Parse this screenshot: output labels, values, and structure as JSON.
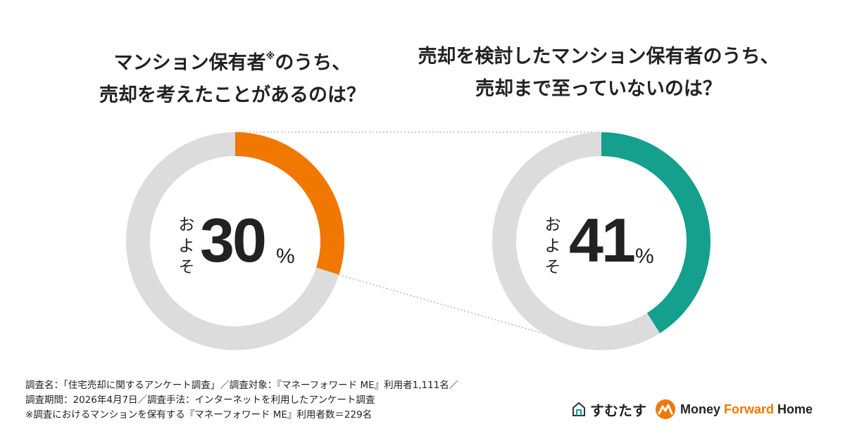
{
  "titles": {
    "left_line1": "マンション保有者",
    "left_mark": "※",
    "left_line1_tail": "のうち、",
    "left_line2": "売却を考えたことがあるのは？",
    "right_line1": "売却を検討したマンション保有者のうち、",
    "right_line2": "売却まで至っていないのは？"
  },
  "labels": {
    "approx": [
      "お",
      "よ",
      "そ"
    ],
    "percent_sign": "%"
  },
  "chart_data": [
    {
      "type": "pie",
      "donut": true,
      "values": [
        30,
        70
      ],
      "display_value": "30",
      "colors": [
        "#f07800",
        "#dcdcdc"
      ]
    },
    {
      "type": "pie",
      "donut": true,
      "values": [
        41,
        59
      ],
      "display_value": "41",
      "colors": [
        "#14a08c",
        "#dcdcdc"
      ]
    }
  ],
  "footnote": {
    "line1": "調査名：「住宅売却に関するアンケート調査」／調査対象：『マネーフォワード ME』利用者1,111名／",
    "line2": "調査期間：2026年4月7日／調査手法：インターネットを利用したアンケート調査",
    "line3": "※調査におけるマンションを保有する『マネーフォワード ME』利用者数＝229名"
  },
  "logos": {
    "sumutasu": "すむたす",
    "mf_part1": "Money ",
    "mf_part2": "Forward",
    "mf_part3": " Home"
  }
}
